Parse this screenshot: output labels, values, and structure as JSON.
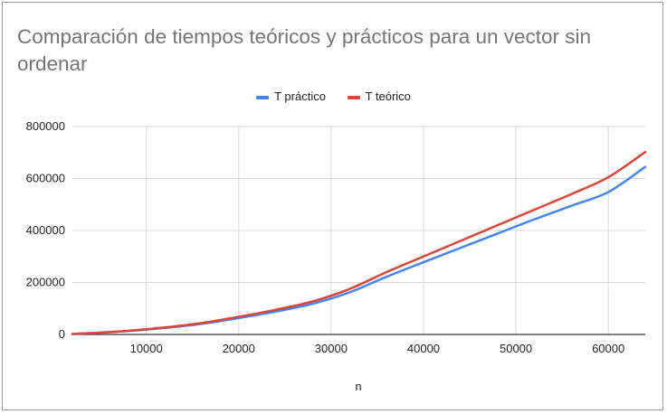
{
  "chart_data": {
    "type": "line",
    "title": "Comparación de tiempos teóricos y prácticos para un vector sin ordenar",
    "xlabel": "n",
    "ylabel": "",
    "xlim": [
      2000,
      64000
    ],
    "ylim": [
      0,
      800000
    ],
    "x_ticks": [
      10000,
      20000,
      30000,
      40000,
      50000,
      60000
    ],
    "y_ticks": [
      0,
      200000,
      400000,
      600000,
      800000
    ],
    "grid": true,
    "legend_position": "top",
    "x": [
      2000,
      4000,
      8000,
      12000,
      16000,
      20000,
      24000,
      28000,
      32000,
      36000,
      40000,
      44000,
      48000,
      52000,
      56000,
      60000,
      64000
    ],
    "series": [
      {
        "name": "T práctico",
        "color": "#4285f4",
        "values": [
          2000,
          5000,
          13000,
          25000,
          41000,
          63000,
          88000,
          118000,
          162000,
          222000,
          278000,
          333000,
          388000,
          443000,
          495000,
          548000,
          645000
        ]
      },
      {
        "name": "T teórico",
        "color": "#db4437",
        "values": [
          1500,
          5000,
          14000,
          27000,
          44000,
          68000,
          95000,
          127000,
          175000,
          240000,
          300000,
          360000,
          420000,
          480000,
          540000,
          605000,
          702000
        ]
      }
    ]
  }
}
